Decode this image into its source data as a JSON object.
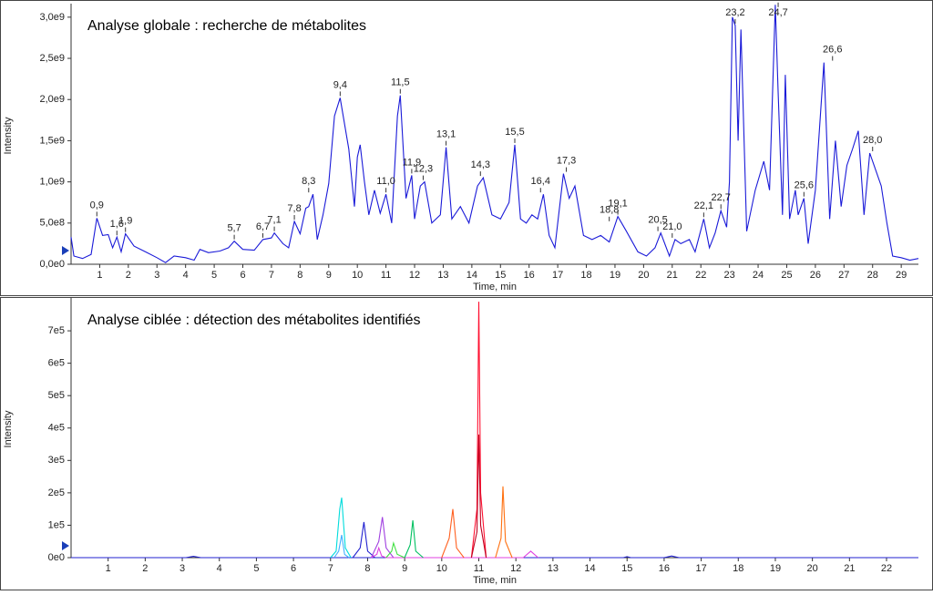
{
  "chart_data": [
    {
      "type": "line",
      "title": "Analyse globale : recherche de métabolites",
      "x_label": "Time, min",
      "y_label": "Intensity",
      "xlim": [
        0,
        29.6
      ],
      "ylim": [
        0,
        3120000000.0
      ],
      "xticks": [
        1,
        2,
        3,
        4,
        5,
        6,
        7,
        8,
        9,
        10,
        11,
        12,
        13,
        14,
        15,
        16,
        17,
        18,
        19,
        20,
        21,
        22,
        23,
        24,
        25,
        26,
        27,
        28,
        29
      ],
      "yticks": [
        {
          "value": 0,
          "label": "0,0e0"
        },
        {
          "value": 500000000.0,
          "label": "5,0e8"
        },
        {
          "value": 1000000000.0,
          "label": "1,0e9"
        },
        {
          "value": 1500000000.0,
          "label": "1,5e9"
        },
        {
          "value": 2000000000.0,
          "label": "2,0e9"
        },
        {
          "value": 2500000000.0,
          "label": "2,5e9"
        },
        {
          "value": 3000000000.0,
          "label": "3,0e9"
        }
      ],
      "series": [
        {
          "color": "#1a1ad8",
          "x": [
            0,
            0.1,
            0.4,
            0.7,
            0.9,
            1.1,
            1.3,
            1.45,
            1.6,
            1.75,
            1.9,
            2.2,
            2.6,
            3.0,
            3.3,
            3.6,
            4.0,
            4.3,
            4.5,
            4.8,
            5.2,
            5.5,
            5.7,
            6.0,
            6.4,
            6.7,
            7.0,
            7.1,
            7.4,
            7.6,
            7.8,
            8.0,
            8.2,
            8.3,
            8.45,
            8.6,
            8.8,
            9.0,
            9.2,
            9.4,
            9.7,
            9.9,
            10.0,
            10.1,
            10.25,
            10.4,
            10.6,
            10.8,
            11.0,
            11.2,
            11.4,
            11.5,
            11.7,
            11.9,
            12.0,
            12.2,
            12.35,
            12.6,
            12.9,
            13.1,
            13.3,
            13.6,
            13.9,
            14.2,
            14.4,
            14.7,
            15.0,
            15.3,
            15.5,
            15.7,
            15.9,
            16.1,
            16.3,
            16.5,
            16.7,
            16.9,
            17.2,
            17.4,
            17.6,
            17.9,
            18.2,
            18.5,
            18.8,
            19.1,
            19.4,
            19.8,
            20.1,
            20.4,
            20.6,
            20.9,
            21.1,
            21.3,
            21.6,
            21.8,
            22.1,
            22.3,
            22.5,
            22.7,
            22.9,
            23.0,
            23.1,
            23.2,
            23.3,
            23.4,
            23.6,
            23.9,
            24.2,
            24.4,
            24.6,
            24.7,
            24.85,
            24.95,
            25.1,
            25.3,
            25.4,
            25.6,
            25.75,
            26.0,
            26.3,
            26.5,
            26.7,
            26.9,
            27.1,
            27.3,
            27.5,
            27.7,
            27.9,
            28.1,
            28.3,
            28.5,
            28.7,
            29.0,
            29.3,
            29.6
          ],
          "values": [
            330000000.0,
            100000000.0,
            70000000.0,
            120000000.0,
            560000000.0,
            350000000.0,
            360000000.0,
            200000000.0,
            330000000.0,
            150000000.0,
            370000000.0,
            220000000.0,
            150000000.0,
            80000000.0,
            20000000.0,
            100000000.0,
            80000000.0,
            50000000.0,
            180000000.0,
            140000000.0,
            160000000.0,
            200000000.0,
            280000000.0,
            180000000.0,
            170000000.0,
            300000000.0,
            320000000.0,
            380000000.0,
            250000000.0,
            200000000.0,
            520000000.0,
            370000000.0,
            680000000.0,
            700000000.0,
            850000000.0,
            300000000.0,
            600000000.0,
            980000000.0,
            1800000000.0,
            2020000000.0,
            1400000000.0,
            700000000.0,
            1300000000.0,
            1450000000.0,
            1000000000.0,
            600000000.0,
            900000000.0,
            620000000.0,
            850000000.0,
            500000000.0,
            1800000000.0,
            2050000000.0,
            800000000.0,
            1080000000.0,
            550000000.0,
            950000000.0,
            1000000000.0,
            500000000.0,
            600000000.0,
            1420000000.0,
            550000000.0,
            700000000.0,
            500000000.0,
            950000000.0,
            1050000000.0,
            600000000.0,
            550000000.0,
            750000000.0,
            1450000000.0,
            550000000.0,
            500000000.0,
            600000000.0,
            550000000.0,
            850000000.0,
            350000000.0,
            200000000.0,
            1100000000.0,
            800000000.0,
            950000000.0,
            350000000.0,
            300000000.0,
            350000000.0,
            270000000.0,
            580000000.0,
            400000000.0,
            150000000.0,
            100000000.0,
            200000000.0,
            380000000.0,
            100000000.0,
            300000000.0,
            250000000.0,
            300000000.0,
            150000000.0,
            550000000.0,
            200000000.0,
            380000000.0,
            650000000.0,
            450000000.0,
            1000000000.0,
            3000000000.0,
            2900000000.0,
            1500000000.0,
            2850000000.0,
            400000000.0,
            900000000.0,
            1250000000.0,
            900000000.0,
            3150000000.0,
            2100000000.0,
            600000000.0,
            2300000000.0,
            550000000.0,
            900000000.0,
            600000000.0,
            800000000.0,
            250000000.0,
            900000000.0,
            2450000000.0,
            550000000.0,
            1500000000.0,
            700000000.0,
            1200000000.0,
            1400000000.0,
            1620000000.0,
            600000000.0,
            1350000000.0,
            1150000000.0,
            950000000.0,
            500000000.0,
            100000000.0,
            80000000.0,
            50000000.0,
            70000000.0
          ]
        }
      ],
      "peak_labels": [
        {
          "value": 0.9,
          "label": "0,9",
          "y": 560000000.0
        },
        {
          "value": 1.6,
          "label": "1,6",
          "y": 330000000.0
        },
        {
          "value": 1.9,
          "label": "1,9",
          "y": 370000000.0
        },
        {
          "value": 5.7,
          "label": "5,7",
          "y": 280000000.0
        },
        {
          "value": 6.7,
          "label": "6,7",
          "y": 300000000.0
        },
        {
          "value": 7.1,
          "label": "7,1",
          "y": 380000000.0
        },
        {
          "value": 7.8,
          "label": "7,8",
          "y": 520000000.0
        },
        {
          "value": 8.3,
          "label": "8,3",
          "y": 850000000.0
        },
        {
          "value": 9.4,
          "label": "9,4",
          "y": 2020000000.0
        },
        {
          "value": 11.0,
          "label": "11,0",
          "y": 850000000.0
        },
        {
          "value": 11.5,
          "label": "11,5",
          "y": 2050000000.0
        },
        {
          "value": 11.9,
          "label": "11,9",
          "y": 1080000000.0
        },
        {
          "value": 12.3,
          "label": "12,3",
          "y": 1000000000.0
        },
        {
          "value": 13.1,
          "label": "13,1",
          "y": 1420000000.0
        },
        {
          "value": 14.3,
          "label": "14,3",
          "y": 1050000000.0
        },
        {
          "value": 15.5,
          "label": "15,5",
          "y": 1450000000.0
        },
        {
          "value": 16.4,
          "label": "16,4",
          "y": 850000000.0
        },
        {
          "value": 17.3,
          "label": "17,3",
          "y": 1100000000.0
        },
        {
          "value": 18.8,
          "label": "18,8",
          "y": 500000000.0
        },
        {
          "value": 19.1,
          "label": "19,1",
          "y": 580000000.0
        },
        {
          "value": 20.5,
          "label": "20,5",
          "y": 380000000.0
        },
        {
          "value": 21.0,
          "label": "21,0",
          "y": 300000000.0
        },
        {
          "value": 22.1,
          "label": "22,1",
          "y": 550000000.0
        },
        {
          "value": 22.7,
          "label": "22,7",
          "y": 650000000.0
        },
        {
          "value": 23.2,
          "label": "23,2",
          "y": 2900000000.0
        },
        {
          "value": 24.7,
          "label": "24,7",
          "y": 3100000000.0
        },
        {
          "value": 25.6,
          "label": "25,6",
          "y": 800000000.0
        },
        {
          "value": 26.6,
          "label": "26,6",
          "y": 2450000000.0
        },
        {
          "value": 28.0,
          "label": "28,0",
          "y": 1350000000.0
        }
      ]
    },
    {
      "type": "line",
      "title": "Analyse ciblée : détection des métabolites identifiés",
      "x_label": "Time, min",
      "y_label": "Intensity",
      "xlim": [
        0,
        22.86
      ],
      "ylim": [
        0,
        793000.0
      ],
      "xticks": [
        1,
        2,
        3,
        4,
        5,
        6,
        7,
        8,
        9,
        10,
        11,
        12,
        13,
        14,
        15,
        16,
        17,
        18,
        19,
        20,
        21,
        22
      ],
      "yticks": [
        {
          "value": 0,
          "label": "0e0"
        },
        {
          "value": 100000.0,
          "label": "1e5"
        },
        {
          "value": 200000.0,
          "label": "2e5"
        },
        {
          "value": 300000.0,
          "label": "3e5"
        },
        {
          "value": 400000.0,
          "label": "4e5"
        },
        {
          "value": 500000.0,
          "label": "5e5"
        },
        {
          "value": 600000.0,
          "label": "6e5"
        },
        {
          "value": 700000.0,
          "label": "7e5"
        }
      ],
      "series": [
        {
          "color": "#2020d0",
          "x": [
            0,
            3.1,
            3.3,
            3.5,
            5,
            14.9,
            15,
            15.1,
            16.0,
            16.2,
            16.4,
            22.86
          ],
          "values": [
            0,
            0,
            4000,
            0,
            0,
            0,
            3000,
            0,
            0,
            5000,
            0,
            0
          ]
        },
        {
          "color": "#00dcdc",
          "x": [
            7.0,
            7.15,
            7.25,
            7.3,
            7.4,
            7.55
          ],
          "values": [
            0,
            20000.0,
            150000.0,
            185000.0,
            30000.0,
            0
          ]
        },
        {
          "color": "#40b0ff",
          "x": [
            7.1,
            7.22,
            7.3,
            7.38,
            7.5
          ],
          "values": [
            0,
            20000.0,
            70000.0,
            10000.0,
            0
          ]
        },
        {
          "color": "#2020d0",
          "x": [
            7.6,
            7.8,
            7.9,
            8.0,
            8.2
          ],
          "values": [
            0,
            30000.0,
            110000.0,
            20000.0,
            0
          ]
        },
        {
          "color": "#a040e0",
          "x": [
            8.1,
            8.3,
            8.4,
            8.5,
            8.7
          ],
          "values": [
            0,
            50000.0,
            125000.0,
            30000.0,
            0
          ]
        },
        {
          "color": "#e040e0",
          "x": [
            8.1,
            8.25,
            8.3,
            8.38,
            8.5,
            12.2,
            12.4,
            12.6
          ],
          "values": [
            0,
            10000.0,
            30000.0,
            5000,
            0,
            0,
            20000.0,
            0
          ]
        },
        {
          "color": "#40e040",
          "x": [
            8.5,
            8.65,
            8.7,
            8.8,
            9.0
          ],
          "values": [
            0,
            20000.0,
            45000.0,
            10000.0,
            0
          ]
        },
        {
          "color": "#00c060",
          "x": [
            9.0,
            9.15,
            9.22,
            9.3,
            9.5
          ],
          "values": [
            0,
            40000.0,
            115000.0,
            20000.0,
            0
          ]
        },
        {
          "color": "#ff6020",
          "x": [
            10.0,
            10.2,
            10.3,
            10.4,
            10.6
          ],
          "values": [
            0,
            60000.0,
            150000.0,
            30000.0,
            0
          ]
        },
        {
          "color": "#ff1030",
          "x": [
            10.8,
            10.95,
            11.0,
            11.05,
            11.2
          ],
          "values": [
            0,
            150000.0,
            790000.0,
            200000.0,
            0
          ]
        },
        {
          "color": "#c00020",
          "x": [
            10.8,
            10.95,
            11.0,
            11.05,
            11.2
          ],
          "values": [
            0,
            80000.0,
            380000.0,
            100000.0,
            0
          ]
        },
        {
          "color": "#ff7010",
          "x": [
            11.45,
            11.6,
            11.65,
            11.72,
            11.9
          ],
          "values": [
            0,
            60000.0,
            220000.0,
            50000.0,
            0
          ]
        }
      ]
    }
  ]
}
